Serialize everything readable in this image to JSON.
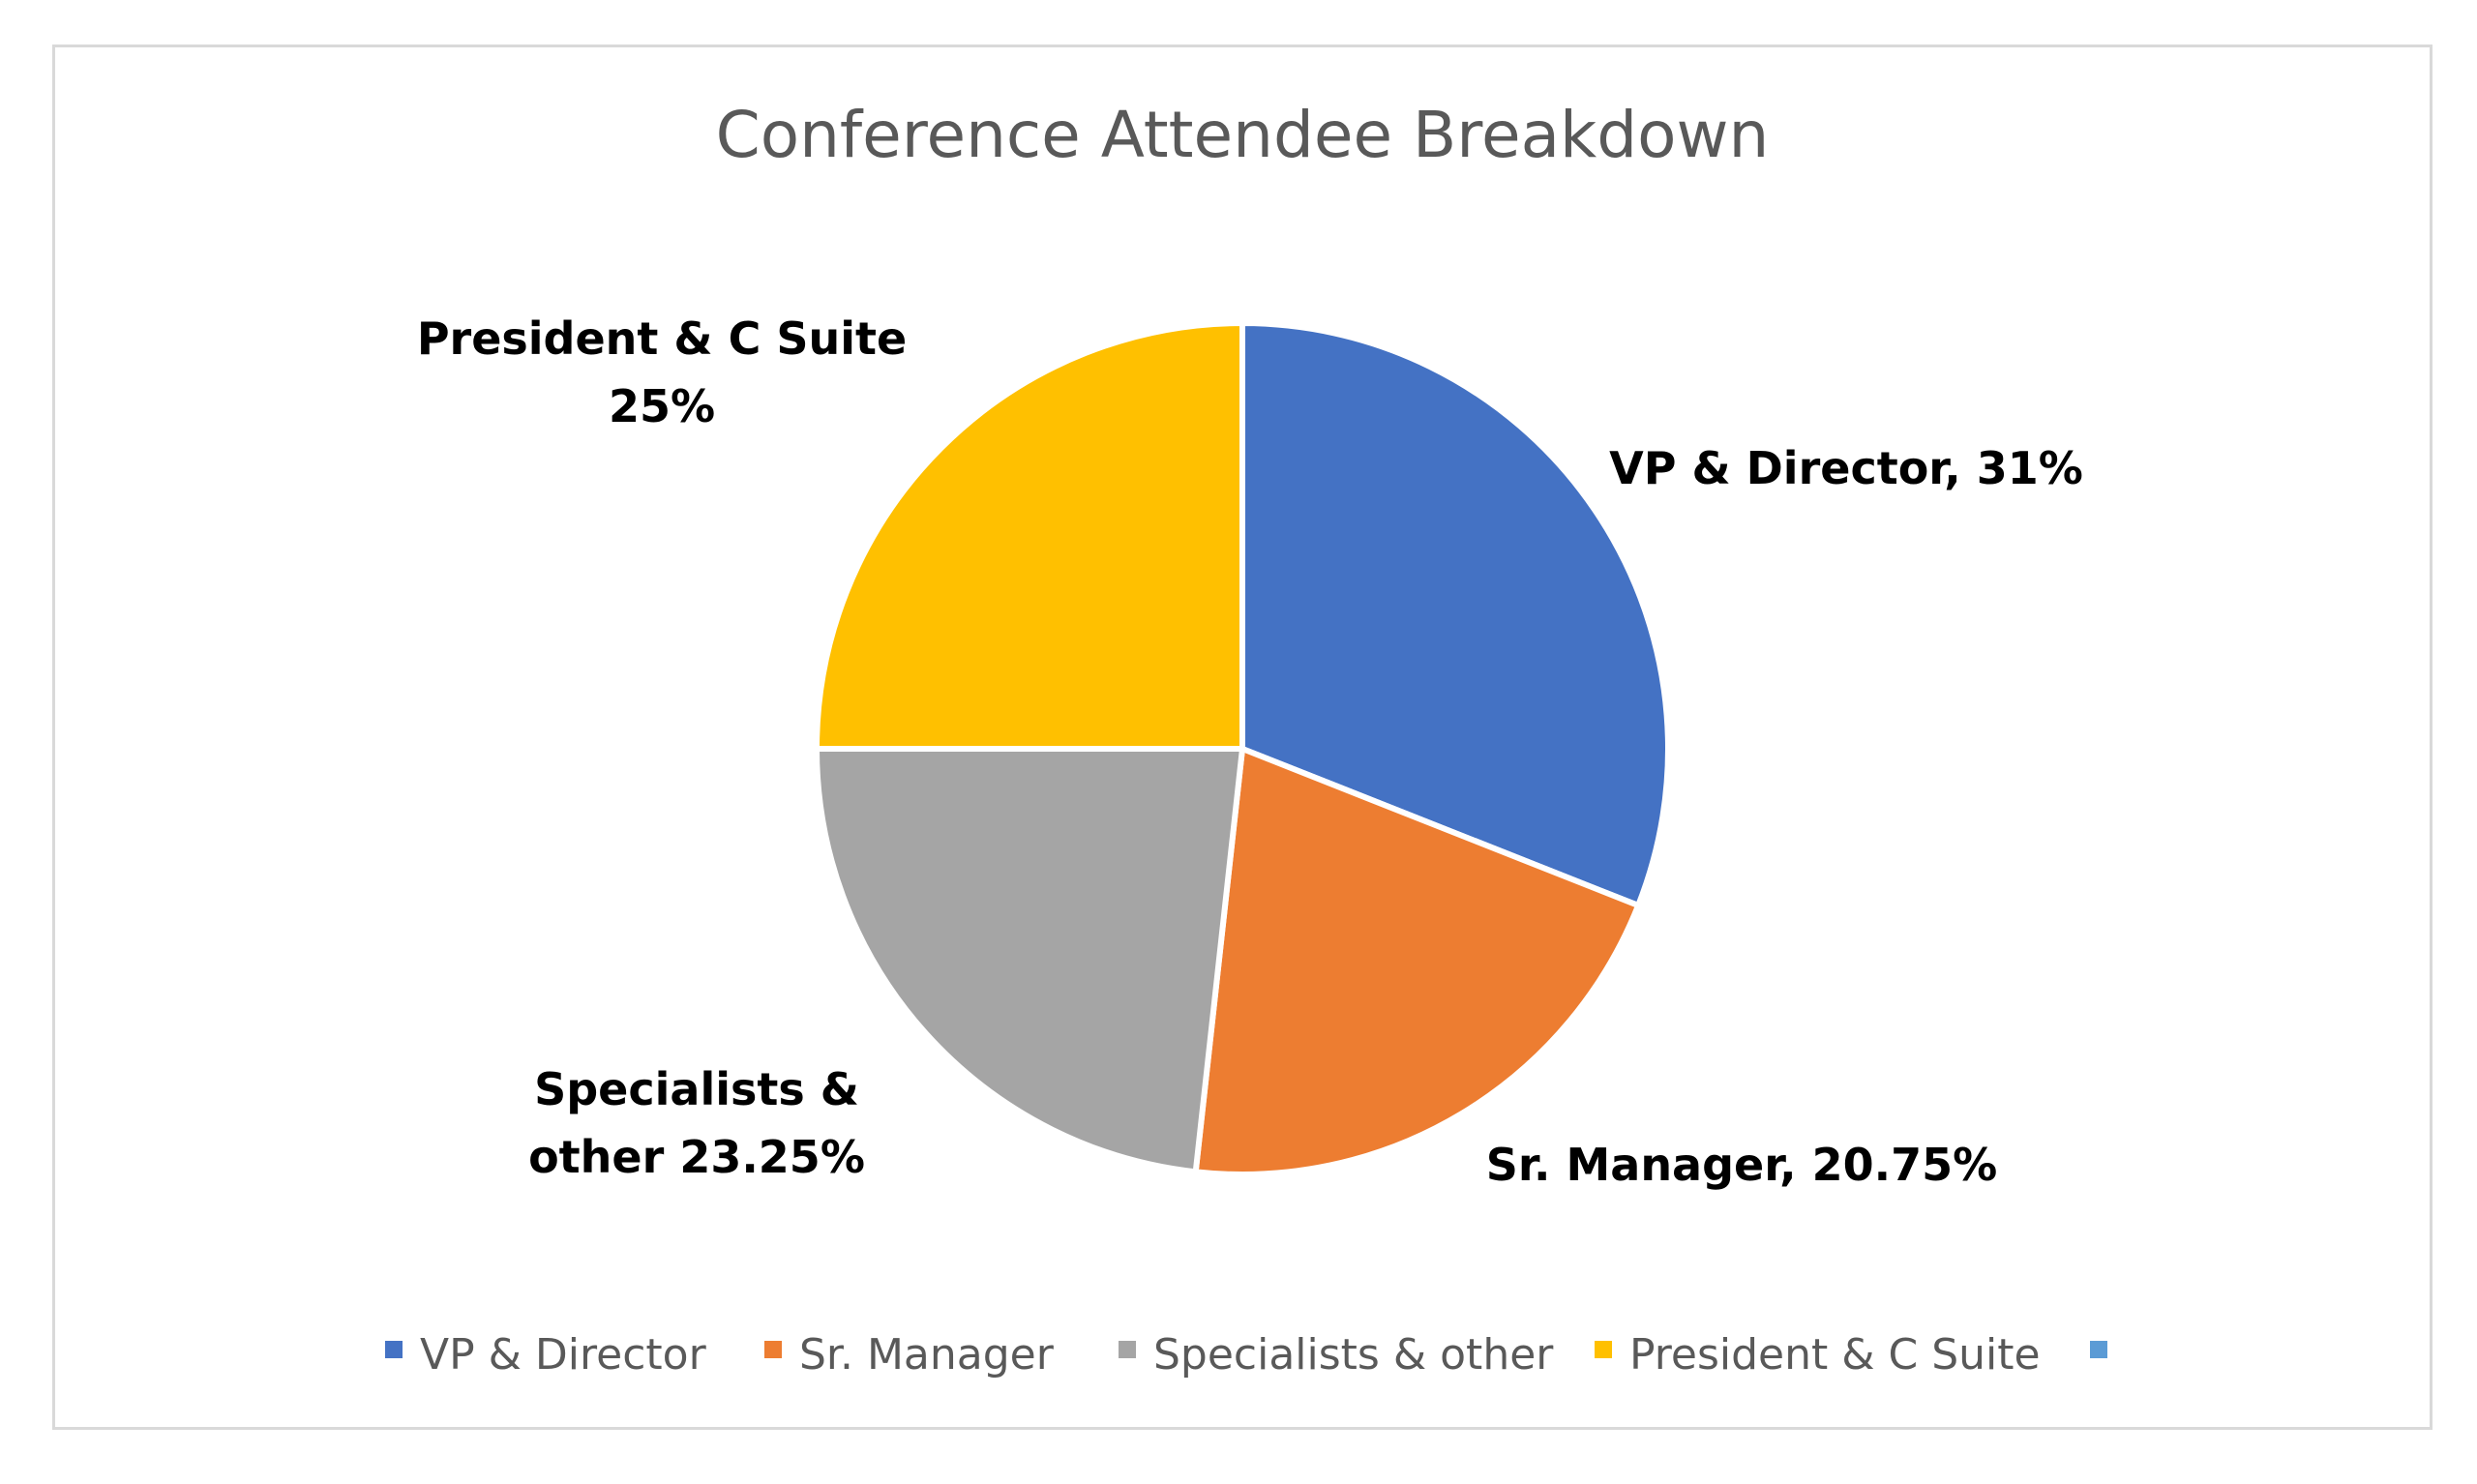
{
  "chart_data": {
    "type": "pie",
    "title": "Conference Attendee Breakdown",
    "categories": [
      "VP & Director",
      "Sr. Manager",
      "Specialists & other",
      "President & C Suite",
      ""
    ],
    "values": [
      31,
      20.75,
      23.25,
      25,
      0
    ],
    "colors": [
      "#4472C4",
      "#ED7D31",
      "#A5A5A5",
      "#FFC000",
      "#5B9BD5"
    ],
    "data_labels": [
      [
        "VP & Director, 31%"
      ],
      [
        "Sr. Manager, 20.75%"
      ],
      [
        "Specialists &",
        "other 23.25%"
      ],
      [
        "President & C Suite",
        "25%"
      ]
    ],
    "legend": {
      "placement": "bottom",
      "entries": [
        "VP & Director",
        "Sr. Manager",
        "Specialists & other",
        "President & C Suite",
        ""
      ]
    }
  }
}
